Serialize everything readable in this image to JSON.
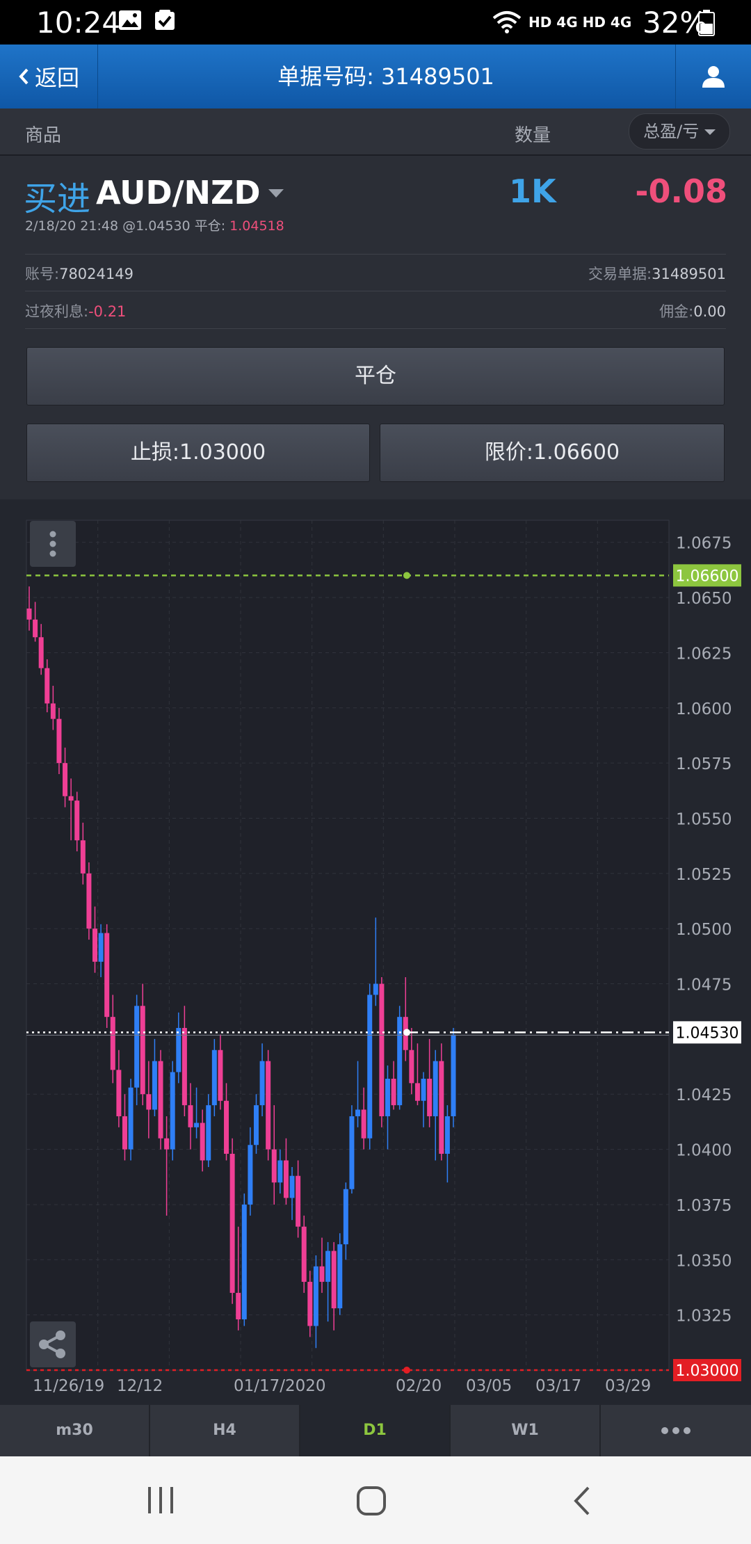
{
  "status_bar": {
    "time": "10:24",
    "network": "HD 4G HD 4G",
    "battery": "32%"
  },
  "nav": {
    "back_label": "返回",
    "title": "单据号码: 31489501"
  },
  "header": {
    "col_product": "商品",
    "col_qty": "数量",
    "col_pnl": "总盈/亏"
  },
  "position": {
    "side": "买进",
    "symbol": "AUD/NZD",
    "open_text": "2/18/20 21:48 @1.04530 平仓: ",
    "close_price": "1.04518",
    "quantity": "1K",
    "pnl": "-0.08",
    "account_label": "账号:",
    "account_value": "78024149",
    "order_label": "交易单据:",
    "order_value": "31489501",
    "swap_label": "过夜利息:",
    "swap_value": "-0.21",
    "commission_label": "佣金:",
    "commission_value": "0.00"
  },
  "buttons": {
    "close": "平仓",
    "stop_loss": "止损:1.03000",
    "limit": "限价:1.06600"
  },
  "chart": {
    "limit_label": "1.06600",
    "open_label": "1.04530",
    "stop_label": "1.03000",
    "colors": {
      "up": "#2f7ff6",
      "down": "#ef3f95",
      "limit": "#8dc63f",
      "stop": "#e31e24",
      "background": "#23262e"
    }
  },
  "chart_data": {
    "type": "candlestick",
    "ylim": [
      1.03,
      1.0685
    ],
    "y_ticks": [
      "1.0675",
      "1.0650",
      "1.0625",
      "1.0600",
      "1.0575",
      "1.0550",
      "1.0525",
      "1.0500",
      "1.0475",
      "1.0425",
      "1.0400",
      "1.0375",
      "1.0350",
      "1.0325"
    ],
    "x_ticks": [
      "11/26/19",
      "12/12",
      "01/17/2020",
      "02/20",
      "03/05",
      "03/17",
      "03/29"
    ],
    "reference_lines": [
      {
        "name": "limit",
        "value": 1.066
      },
      {
        "name": "open",
        "value": 1.0453
      },
      {
        "name": "stop",
        "value": 1.03
      }
    ],
    "candles_ohlc": [
      [
        1.0645,
        1.0655,
        1.0635,
        1.064
      ],
      [
        1.064,
        1.0648,
        1.063,
        1.0632
      ],
      [
        1.0632,
        1.0638,
        1.0615,
        1.0618
      ],
      [
        1.0618,
        1.0622,
        1.0598,
        1.0602
      ],
      [
        1.0602,
        1.061,
        1.059,
        1.0595
      ],
      [
        1.0595,
        1.06,
        1.057,
        1.0575
      ],
      [
        1.0575,
        1.0582,
        1.0555,
        1.056
      ],
      [
        1.056,
        1.0568,
        1.054,
        1.0558
      ],
      [
        1.0558,
        1.0562,
        1.0535,
        1.054
      ],
      [
        1.054,
        1.0548,
        1.052,
        1.0525
      ],
      [
        1.0525,
        1.053,
        1.0495,
        1.05
      ],
      [
        1.05,
        1.051,
        1.048,
        1.0485
      ],
      [
        1.0485,
        1.0502,
        1.0478,
        1.0498
      ],
      [
        1.0498,
        1.0502,
        1.0455,
        1.046
      ],
      [
        1.046,
        1.047,
        1.043,
        1.0436
      ],
      [
        1.0436,
        1.0445,
        1.041,
        1.0415
      ],
      [
        1.0415,
        1.0425,
        1.0395,
        1.04
      ],
      [
        1.04,
        1.0432,
        1.0395,
        1.0428
      ],
      [
        1.0428,
        1.047,
        1.042,
        1.0465
      ],
      [
        1.0465,
        1.0475,
        1.042,
        1.0425
      ],
      [
        1.0425,
        1.044,
        1.0405,
        1.0418
      ],
      [
        1.0418,
        1.045,
        1.0415,
        1.044
      ],
      [
        1.044,
        1.0445,
        1.04,
        1.0405
      ],
      [
        1.0405,
        1.0415,
        1.037,
        1.04
      ],
      [
        1.04,
        1.044,
        1.0395,
        1.0435
      ],
      [
        1.0435,
        1.0462,
        1.043,
        1.0455
      ],
      [
        1.0455,
        1.0465,
        1.0415,
        1.042
      ],
      [
        1.042,
        1.043,
        1.04,
        1.041
      ],
      [
        1.041,
        1.0428,
        1.0405,
        1.0412
      ],
      [
        1.0412,
        1.0418,
        1.039,
        1.0395
      ],
      [
        1.0395,
        1.0425,
        1.0392,
        1.042
      ],
      [
        1.042,
        1.045,
        1.0415,
        1.0445
      ],
      [
        1.0445,
        1.0452,
        1.0418,
        1.0422
      ],
      [
        1.0422,
        1.043,
        1.0395,
        1.0398
      ],
      [
        1.0398,
        1.0405,
        1.033,
        1.0335
      ],
      [
        1.0335,
        1.0365,
        1.0318,
        1.0323
      ],
      [
        1.0323,
        1.038,
        1.032,
        1.0375
      ],
      [
        1.0375,
        1.041,
        1.037,
        1.0402
      ],
      [
        1.0402,
        1.0425,
        1.0398,
        1.042
      ],
      [
        1.042,
        1.0448,
        1.0415,
        1.044
      ],
      [
        1.044,
        1.0445,
        1.0395,
        1.04
      ],
      [
        1.04,
        1.042,
        1.0375,
        1.0385
      ],
      [
        1.0385,
        1.04,
        1.038,
        1.0395
      ],
      [
        1.0395,
        1.0405,
        1.0375,
        1.0378
      ],
      [
        1.0378,
        1.0392,
        1.0368,
        1.0388
      ],
      [
        1.0388,
        1.0395,
        1.036,
        1.0365
      ],
      [
        1.0365,
        1.037,
        1.0335,
        1.034
      ],
      [
        1.034,
        1.0345,
        1.0315,
        1.032
      ],
      [
        1.032,
        1.0352,
        1.031,
        1.0347
      ],
      [
        1.0347,
        1.036,
        1.0335,
        1.034
      ],
      [
        1.034,
        1.0358,
        1.0322,
        1.0354
      ],
      [
        1.0354,
        1.0358,
        1.0318,
        1.0328
      ],
      [
        1.0328,
        1.0362,
        1.0325,
        1.0357
      ],
      [
        1.0357,
        1.0385,
        1.035,
        1.0382
      ],
      [
        1.0382,
        1.042,
        1.038,
        1.0415
      ],
      [
        1.0415,
        1.044,
        1.041,
        1.0418
      ],
      [
        1.0418,
        1.0428,
        1.04,
        1.0405
      ],
      [
        1.0405,
        1.0475,
        1.04,
        1.047
      ],
      [
        1.047,
        1.0505,
        1.0465,
        1.0475
      ],
      [
        1.0475,
        1.0478,
        1.041,
        1.0415
      ],
      [
        1.0415,
        1.0438,
        1.04,
        1.0432
      ],
      [
        1.0432,
        1.044,
        1.0418,
        1.042
      ],
      [
        1.042,
        1.0465,
        1.0418,
        1.046
      ],
      [
        1.046,
        1.0478,
        1.044,
        1.0445
      ],
      [
        1.0445,
        1.0455,
        1.0425,
        1.043
      ],
      [
        1.043,
        1.0448,
        1.042,
        1.0422
      ],
      [
        1.0422,
        1.0435,
        1.041,
        1.0432
      ],
      [
        1.0432,
        1.045,
        1.041,
        1.0415
      ],
      [
        1.0415,
        1.0445,
        1.0395,
        1.044
      ],
      [
        1.044,
        1.0448,
        1.0395,
        1.0398
      ],
      [
        1.0398,
        1.042,
        1.0385,
        1.0415
      ],
      [
        1.0415,
        1.0455,
        1.041,
        1.0452
      ]
    ]
  },
  "timeframes": [
    "m30",
    "H4",
    "D1",
    "W1"
  ],
  "active_timeframe": "D1"
}
